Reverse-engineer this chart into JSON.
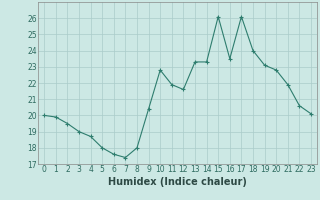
{
  "x": [
    0,
    1,
    2,
    3,
    4,
    5,
    6,
    7,
    8,
    9,
    10,
    11,
    12,
    13,
    14,
    15,
    16,
    17,
    18,
    19,
    20,
    21,
    22,
    23
  ],
  "y": [
    20.0,
    19.9,
    19.5,
    19.0,
    18.7,
    18.0,
    17.6,
    17.4,
    18.0,
    20.4,
    22.8,
    21.9,
    21.6,
    23.3,
    23.3,
    26.1,
    23.5,
    26.1,
    24.0,
    23.1,
    22.8,
    21.9,
    20.6,
    20.1
  ],
  "line_color": "#2e7d6e",
  "marker": "+",
  "marker_color": "#2e7d6e",
  "bg_color": "#cce8e4",
  "grid_color": "#aaccca",
  "xlabel": "Humidex (Indice chaleur)",
  "ylabel": "",
  "ylim": [
    17,
    27
  ],
  "yticks": [
    17,
    18,
    19,
    20,
    21,
    22,
    23,
    24,
    25,
    26
  ],
  "xticks": [
    0,
    1,
    2,
    3,
    4,
    5,
    6,
    7,
    8,
    9,
    10,
    11,
    12,
    13,
    14,
    15,
    16,
    17,
    18,
    19,
    20,
    21,
    22,
    23
  ],
  "tick_label_fontsize": 5.5,
  "xlabel_fontsize": 7.0
}
